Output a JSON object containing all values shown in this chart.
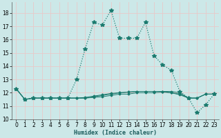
{
  "xlabel": "Humidex (Indice chaleur)",
  "xlim": [
    -0.5,
    23.5
  ],
  "ylim": [
    10,
    18.8
  ],
  "yticks": [
    10,
    11,
    12,
    13,
    14,
    15,
    16,
    17,
    18
  ],
  "xticks": [
    0,
    1,
    2,
    3,
    4,
    5,
    6,
    7,
    8,
    9,
    10,
    11,
    12,
    13,
    14,
    15,
    16,
    17,
    18,
    19,
    20,
    21,
    22,
    23
  ],
  "bg_color": "#cce8e8",
  "grid_color": "#e8c8c8",
  "line_color": "#1a7a6e",
  "main_line": [
    12.3,
    11.5,
    11.6,
    11.6,
    11.6,
    11.6,
    11.6,
    13.0,
    15.3,
    17.3,
    17.1,
    18.2,
    16.1,
    16.1,
    16.1,
    17.3,
    14.8,
    14.1,
    13.7,
    12.1,
    11.6,
    10.5,
    11.1,
    11.9
  ],
  "flat_lines": [
    [
      12.3,
      11.5,
      11.6,
      11.6,
      11.6,
      11.6,
      11.6,
      11.6,
      11.6,
      11.7,
      11.8,
      11.9,
      12.0,
      12.05,
      12.1,
      12.1,
      12.1,
      12.1,
      12.1,
      12.0,
      11.6,
      11.6,
      11.9,
      11.9
    ],
    [
      12.3,
      11.5,
      11.6,
      11.6,
      11.6,
      11.6,
      11.6,
      11.6,
      11.65,
      11.75,
      11.85,
      11.95,
      12.0,
      12.05,
      12.1,
      12.1,
      12.1,
      12.1,
      12.0,
      11.9,
      11.6,
      11.6,
      11.9,
      11.9
    ],
    [
      12.3,
      11.5,
      11.6,
      11.6,
      11.6,
      11.6,
      11.6,
      11.6,
      11.6,
      11.65,
      11.7,
      11.8,
      11.9,
      11.9,
      12.0,
      12.0,
      12.0,
      12.05,
      12.0,
      11.85,
      11.6,
      11.6,
      11.9,
      11.9
    ]
  ]
}
